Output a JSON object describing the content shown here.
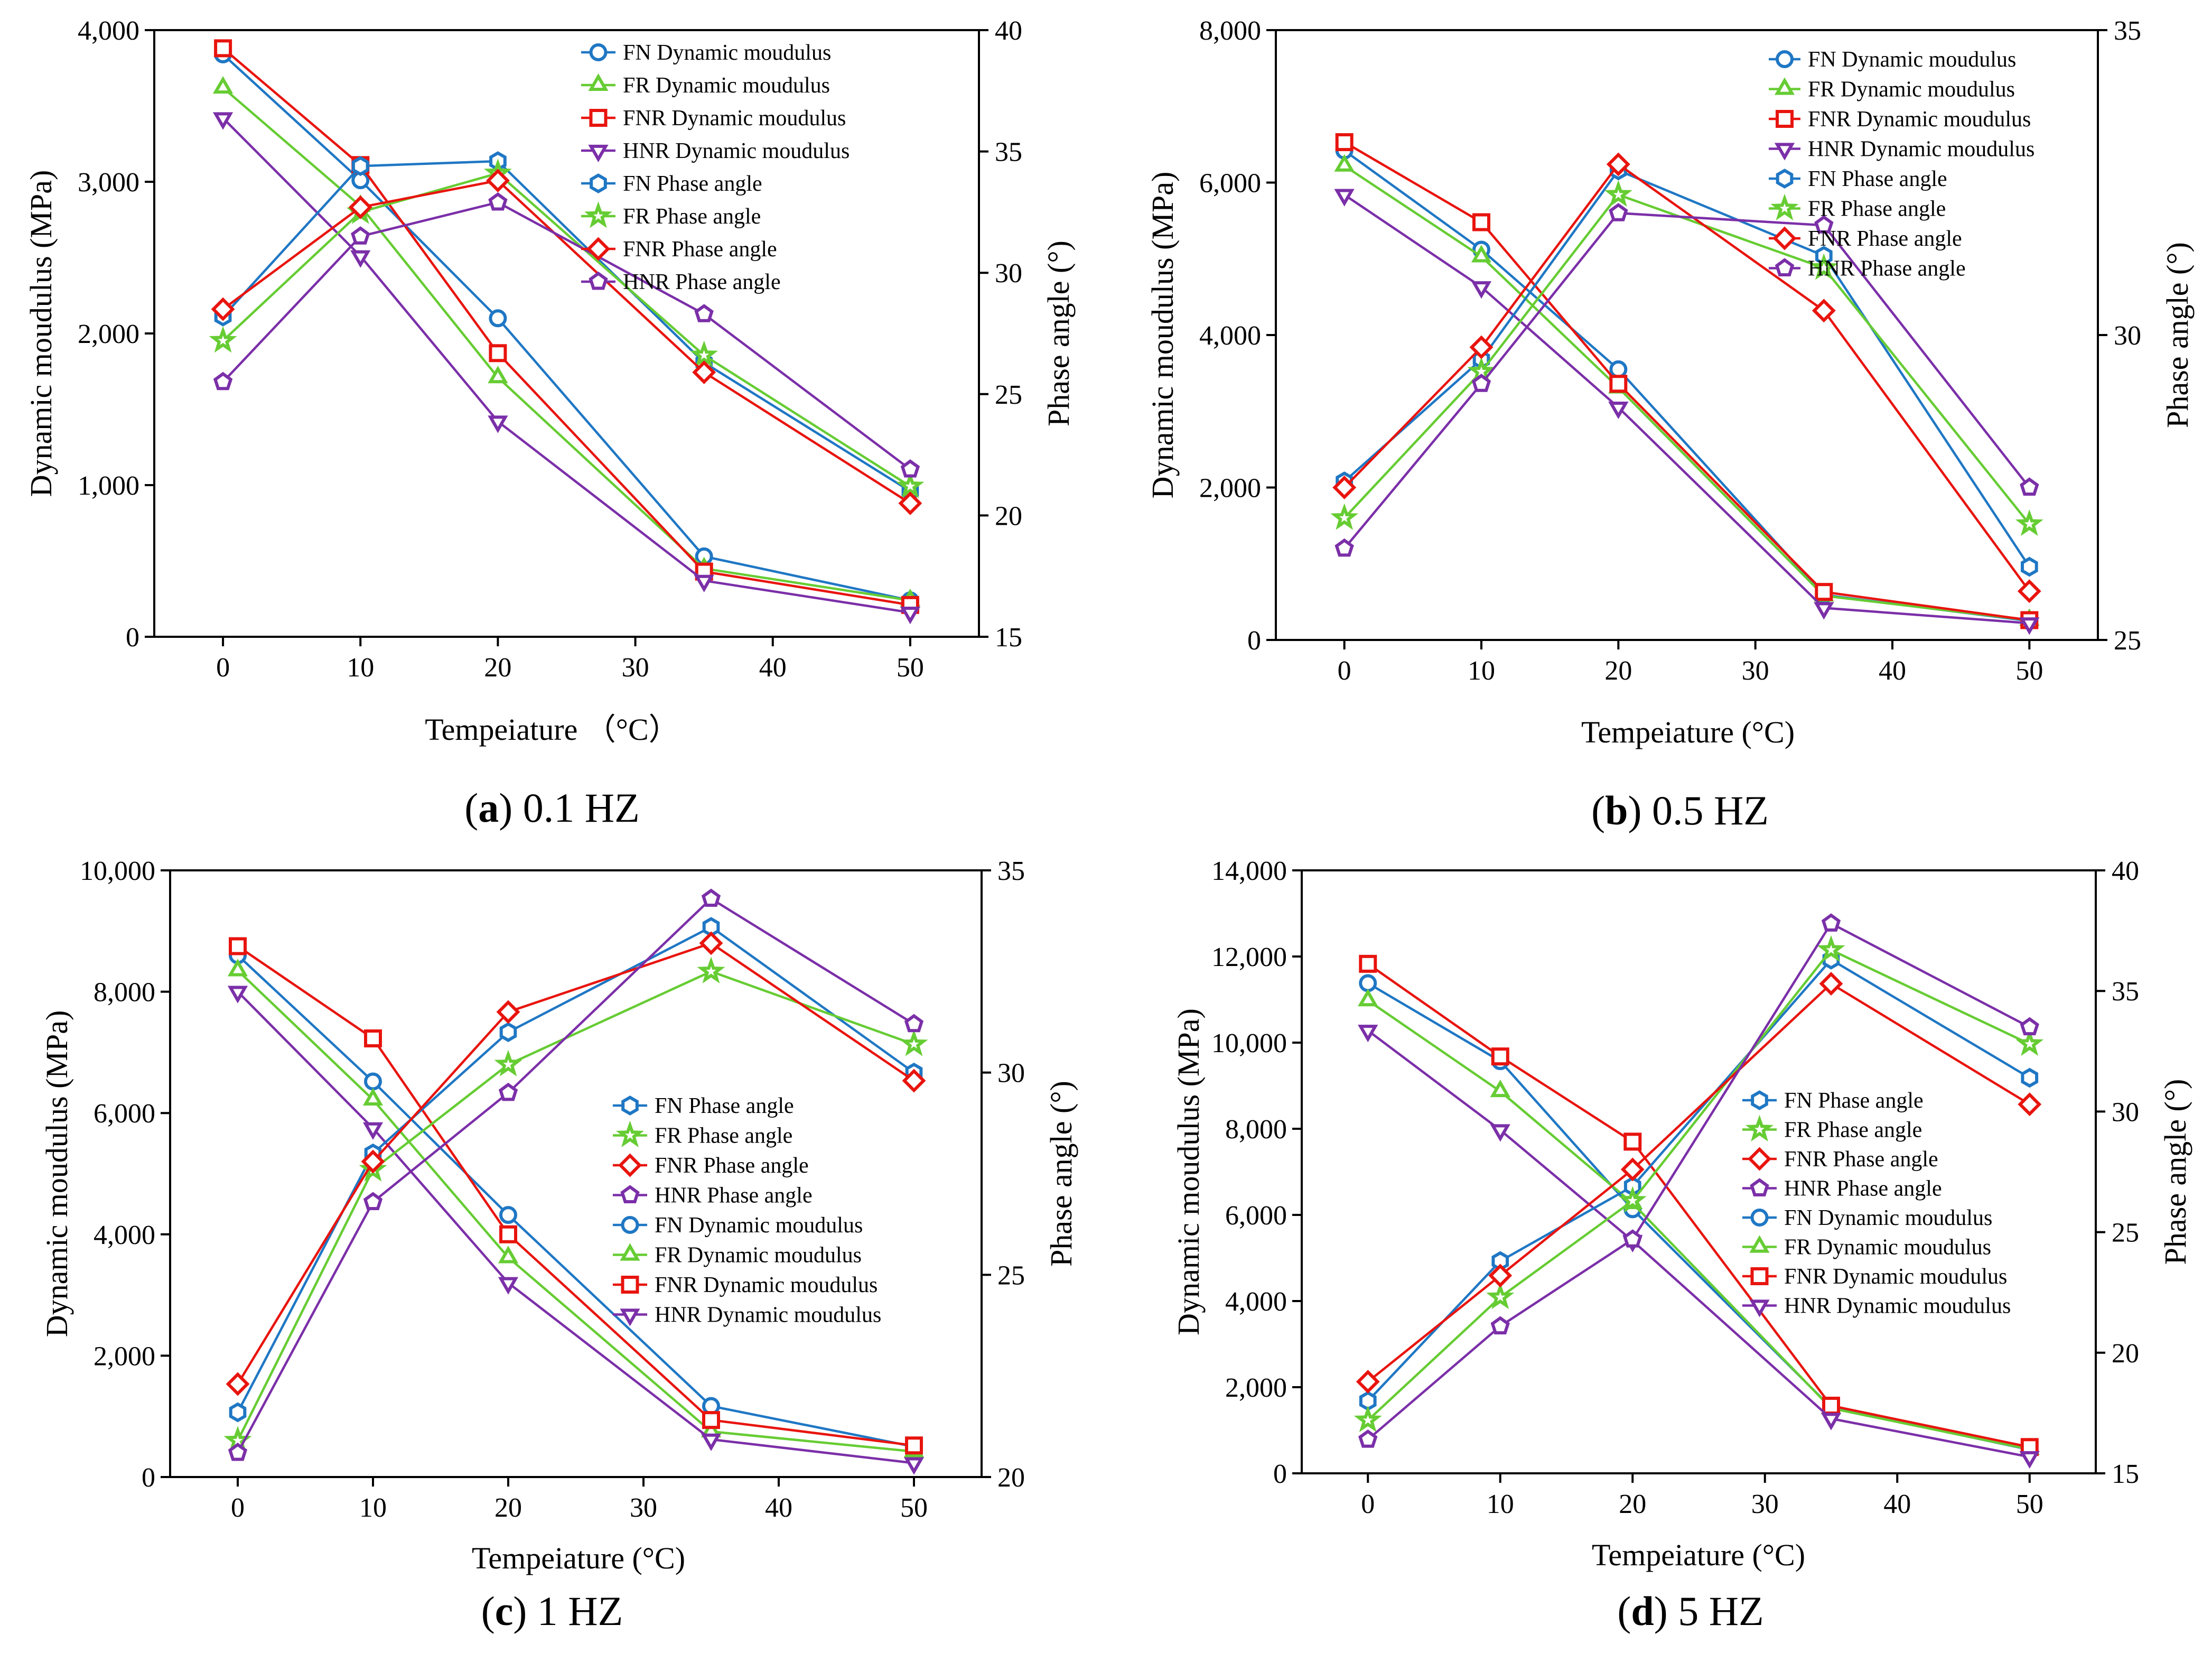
{
  "colors": {
    "FN": "#1f77c4",
    "FR": "#66cc33",
    "FNR": "#e8140e",
    "HNR": "#7b2fa8"
  },
  "marker_shapes": {
    "modulus": {
      "FN": "circle",
      "FR": "triangle-up",
      "FNR": "square",
      "HNR": "triangle-down"
    },
    "phase": {
      "FN": "hexagon",
      "FR": "star",
      "FNR": "diamond",
      "HNR": "pentagon"
    }
  },
  "chart_data": [
    {
      "type": "line",
      "id": "a",
      "caption_letter": "a",
      "caption_text": " 0.1 HZ",
      "xlabel": "Tempeiature （°C）",
      "ylabel": "Dynamic moudulus (MPa)",
      "y2label": "Phase angle (°)",
      "x": [
        0,
        10,
        20,
        35,
        50
      ],
      "xticks": [
        "0",
        "10",
        "20",
        "30",
        "40",
        "50"
      ],
      "xlim": [
        -5,
        55
      ],
      "ylim": [
        0,
        4000
      ],
      "yticks": [
        "0",
        "1,000",
        "2,000",
        "3,000",
        "4,000"
      ],
      "y2lim": [
        15,
        40
      ],
      "y2ticks": [
        "15",
        "20",
        "25",
        "30",
        "35",
        "40"
      ],
      "legend": [
        "FN Dynamic moudulus",
        "FR Dynamic moudulus",
        "FNR Dynamic moudulus",
        "HNR Dynamic moudulus",
        "FN Phase angle",
        "FR Phase angle",
        "FNR Phase angle",
        "HNR Phase angle"
      ],
      "modulus": {
        "FN": [
          3840,
          3010,
          2100,
          530,
          240
        ],
        "FR": [
          3620,
          2840,
          1710,
          450,
          240
        ],
        "FNR": [
          3880,
          3110,
          1870,
          430,
          210
        ],
        "HNR": [
          3420,
          2510,
          1420,
          370,
          160
        ]
      },
      "phase": {
        "FN": [
          28.2,
          34.4,
          34.6,
          26.3,
          21.0
        ],
        "FR": [
          27.2,
          32.5,
          34.1,
          26.6,
          21.2
        ],
        "FNR": [
          28.5,
          32.7,
          33.8,
          25.9,
          20.5
        ],
        "HNR": [
          25.5,
          31.5,
          32.9,
          28.3,
          21.9
        ]
      }
    },
    {
      "type": "line",
      "id": "b",
      "caption_letter": "b",
      "caption_text": " 0.5 HZ",
      "xlabel": "Tempeiature (°C)",
      "ylabel": "Dynamic moudulus (MPa)",
      "y2label": "Phase angle (°)",
      "x": [
        0,
        10,
        20,
        35,
        50
      ],
      "xticks": [
        "0",
        "10",
        "20",
        "30",
        "40",
        "50"
      ],
      "xlim": [
        -5,
        55
      ],
      "ylim": [
        0,
        8000
      ],
      "yticks": [
        "0",
        "2,000",
        "4,000",
        "6,000",
        "8,000"
      ],
      "y2lim": [
        25,
        35
      ],
      "y2ticks": [
        "25",
        "30",
        "35"
      ],
      "legend": [
        "FN Dynamic moudulus",
        "FR Dynamic moudulus",
        "FNR Dynamic moudulus",
        "HNR Dynamic moudulus",
        "FN Phase angle",
        "FR Phase angle",
        "FNR Phase angle",
        "HNR Phase angle"
      ],
      "modulus": {
        "FN": [
          6420,
          5120,
          3550,
          590,
          250
        ],
        "FR": [
          6220,
          5030,
          3310,
          580,
          260
        ],
        "FNR": [
          6530,
          5480,
          3360,
          630,
          260
        ],
        "HNR": [
          5840,
          4630,
          3050,
          420,
          220
        ]
      },
      "phase": {
        "FN": [
          27.6,
          29.6,
          32.7,
          31.3,
          26.2
        ],
        "FR": [
          27.0,
          29.4,
          32.3,
          31.1,
          26.9
        ],
        "FNR": [
          27.5,
          29.8,
          32.8,
          30.4,
          25.8
        ],
        "HNR": [
          26.5,
          29.2,
          32.0,
          31.8,
          27.5
        ]
      }
    },
    {
      "type": "line",
      "id": "c",
      "caption_letter": "c",
      "caption_text": " 1 HZ",
      "xlabel": "Tempeiature (°C)",
      "ylabel": "Dynamic moudulus (MPa)",
      "y2label": "Phase angle (°)",
      "x": [
        0,
        10,
        20,
        35,
        50
      ],
      "xticks": [
        "0",
        "10",
        "20",
        "30",
        "40",
        "50"
      ],
      "xlim": [
        -5,
        55
      ],
      "ylim": [
        0,
        10000
      ],
      "yticks": [
        "0",
        "2,000",
        "4,000",
        "6,000",
        "8,000",
        "10,000"
      ],
      "y2lim": [
        20,
        35
      ],
      "y2ticks": [
        "20",
        "25",
        "30",
        "35"
      ],
      "legend": [
        "FN Phase angle",
        "FR Phase angle",
        "FNR Phase angle",
        "HNR Phase angle",
        "FN Dynamic moudulus",
        "FR Dynamic moudulus",
        "FNR Dynamic moudulus",
        "HNR Dynamic moudulus"
      ],
      "modulus": {
        "FN": [
          8600,
          6520,
          4320,
          1170,
          500
        ],
        "FR": [
          8350,
          6220,
          3620,
          750,
          420
        ],
        "FNR": [
          8750,
          7230,
          4000,
          940,
          520
        ],
        "HNR": [
          8000,
          5750,
          3200,
          620,
          230
        ]
      },
      "phase": {
        "FN": [
          21.6,
          28.0,
          31.0,
          33.6,
          30.0
        ],
        "FR": [
          20.9,
          27.6,
          30.2,
          32.5,
          30.7
        ],
        "FNR": [
          22.3,
          27.8,
          31.5,
          33.2,
          29.8
        ],
        "HNR": [
          20.6,
          26.8,
          29.5,
          34.3,
          31.2
        ]
      }
    },
    {
      "type": "line",
      "id": "d",
      "caption_letter": "d",
      "caption_text": " 5 HZ",
      "xlabel": "Tempeiature (°C)",
      "ylabel": "Dynamic moudulus (MPa)",
      "y2label": "Phase angle (°)",
      "x": [
        0,
        10,
        20,
        35,
        50
      ],
      "xticks": [
        "0",
        "10",
        "20",
        "30",
        "40",
        "50"
      ],
      "xlim": [
        -5,
        55
      ],
      "ylim": [
        0,
        14000
      ],
      "yticks": [
        "0",
        "2,000",
        "4,000",
        "6,000",
        "8,000",
        "10,000",
        "12,000",
        "14,000"
      ],
      "y2lim": [
        15,
        40
      ],
      "y2ticks": [
        "15",
        "20",
        "25",
        "30",
        "35",
        "40"
      ],
      "legend": [
        "FN Phase angle",
        "FR Phase angle",
        "FNR Phase angle",
        "HNR Phase angle",
        "FN Dynamic moudulus",
        "FR Dynamic moudulus",
        "FNR Dynamic moudulus",
        "HNR Dynamic moudulus"
      ],
      "modulus": {
        "FN": [
          11380,
          9570,
          6130,
          1530,
          550
        ],
        "FR": [
          10980,
          8870,
          6270,
          1510,
          560
        ],
        "FNR": [
          11830,
          9680,
          7700,
          1570,
          610
        ],
        "HNR": [
          10280,
          7970,
          5400,
          1270,
          380
        ]
      },
      "phase": {
        "FN": [
          18.0,
          23.8,
          26.9,
          36.3,
          31.4
        ],
        "FR": [
          17.2,
          22.3,
          26.3,
          36.7,
          32.8
        ],
        "FNR": [
          18.8,
          23.2,
          27.6,
          35.3,
          30.3
        ],
        "HNR": [
          16.4,
          21.1,
          24.7,
          37.8,
          33.5
        ]
      }
    }
  ]
}
